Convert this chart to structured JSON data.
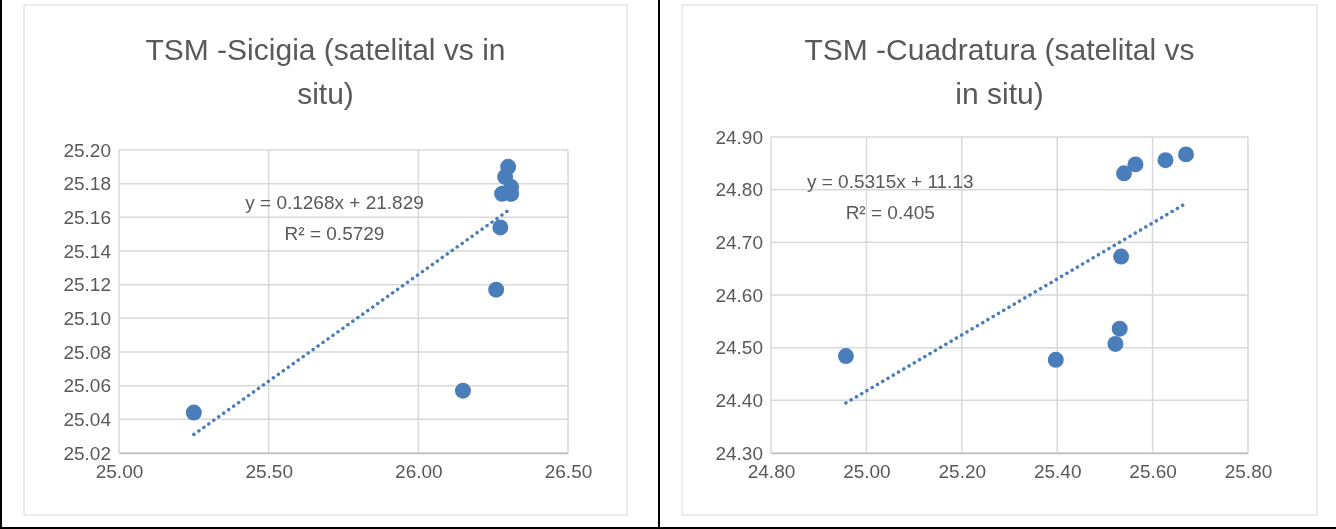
{
  "chart_data": [
    {
      "type": "scatter",
      "title": "TSM -Sicigia (satelital vs in situ)",
      "xlim": [
        25.0,
        26.5
      ],
      "xticks": [
        {
          "value": 25.0,
          "label": "25.00"
        },
        {
          "value": 25.5,
          "label": "25.50"
        },
        {
          "value": 26.0,
          "label": "26.00"
        },
        {
          "value": 26.5,
          "label": "26.50"
        }
      ],
      "ylim": [
        25.02,
        25.2
      ],
      "yticks": [
        {
          "value": 25.02,
          "label": "25.02"
        },
        {
          "value": 25.04,
          "label": "25.04"
        },
        {
          "value": 25.06,
          "label": "25.06"
        },
        {
          "value": 25.08,
          "label": "25.08"
        },
        {
          "value": 25.1,
          "label": "25.10"
        },
        {
          "value": 25.12,
          "label": "25.12"
        },
        {
          "value": 25.14,
          "label": "25.14"
        },
        {
          "value": 25.16,
          "label": "25.16"
        },
        {
          "value": 25.18,
          "label": "25.18"
        },
        {
          "value": 25.2,
          "label": "25.20"
        }
      ],
      "grid": true,
      "marker": "circle",
      "series": [
        {
          "type": "scatter",
          "color": "#4a7ebb",
          "x": [
            25.25,
            26.149,
            26.26,
            26.274,
            26.28,
            26.31,
            26.31,
            26.29,
            26.3
          ],
          "values": [
            25.044,
            25.057,
            25.117,
            25.154,
            25.174,
            25.174,
            25.178,
            25.184,
            25.19
          ]
        },
        {
          "type": "line",
          "color": "#4a7ebb",
          "line_style": "dotted",
          "marker": "none",
          "x": [
            25.25,
            26.3
          ],
          "values": [
            25.031,
            25.164
          ]
        }
      ],
      "annotations": [
        "y = 0.1268x + 21.829",
        "R² = 0.5729"
      ]
    },
    {
      "type": "scatter",
      "title": "TSM -Cuadratura (satelital vs in situ)",
      "xlim": [
        24.8,
        25.8
      ],
      "xticks": [
        {
          "value": 24.8,
          "label": "24.80"
        },
        {
          "value": 25.0,
          "label": "25.00"
        },
        {
          "value": 25.2,
          "label": "25.20"
        },
        {
          "value": 25.4,
          "label": "25.40"
        },
        {
          "value": 25.6,
          "label": "25.60"
        },
        {
          "value": 25.8,
          "label": "25.80"
        }
      ],
      "ylim": [
        24.3,
        24.9
      ],
      "yticks": [
        {
          "value": 24.3,
          "label": "24.30"
        },
        {
          "value": 24.4,
          "label": "24.40"
        },
        {
          "value": 24.5,
          "label": "24.50"
        },
        {
          "value": 24.6,
          "label": "24.60"
        },
        {
          "value": 24.7,
          "label": "24.70"
        },
        {
          "value": 24.8,
          "label": "24.80"
        },
        {
          "value": 24.9,
          "label": "24.90"
        }
      ],
      "grid": true,
      "marker": "circle",
      "series": [
        {
          "type": "scatter",
          "color": "#4a7ebb",
          "x": [
            24.957,
            25.397,
            25.522,
            25.531,
            25.534,
            25.54,
            25.564,
            25.627,
            25.67
          ],
          "values": [
            24.484,
            24.477,
            24.507,
            24.536,
            24.673,
            24.831,
            24.848,
            24.856,
            24.867
          ]
        },
        {
          "type": "line",
          "color": "#4a7ebb",
          "line_style": "dotted",
          "marker": "none",
          "x": [
            24.957,
            25.67
          ],
          "values": [
            24.395,
            24.774
          ]
        }
      ],
      "annotations": [
        "y = 0.5315x + 11.13",
        "R² = 0.405"
      ]
    }
  ]
}
